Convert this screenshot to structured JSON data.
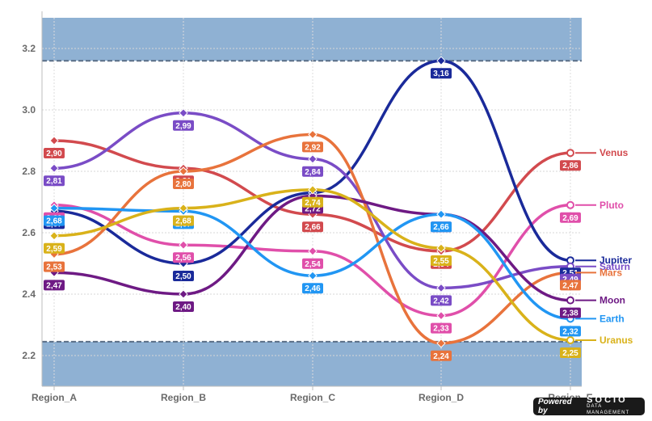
{
  "chart_data": {
    "type": "line",
    "categories": [
      "Region_A",
      "Region_B",
      "Region_C",
      "Region_D",
      "Region_E"
    ],
    "ylim": [
      2.1,
      3.3
    ],
    "yticks": [
      "2.2",
      "2.4",
      "2.6",
      "2.8",
      "3.0",
      "3.2"
    ],
    "grid": true,
    "bands": [
      {
        "from": 3.16,
        "to": 3.3,
        "color": "#8fb1d3"
      },
      {
        "from": 2.1,
        "to": 2.245,
        "color": "#8fb1d3"
      }
    ],
    "series": [
      {
        "name": "Venus",
        "color": "#d24a4e",
        "values": [
          2.9,
          2.81,
          2.66,
          2.54,
          2.86
        ],
        "labels": [
          "2,90",
          "2,81",
          "2,66",
          "2,54",
          "2,86"
        ]
      },
      {
        "name": "Pluto",
        "color": "#e04faa",
        "values": [
          2.69,
          2.56,
          2.54,
          2.33,
          2.69
        ],
        "labels": [
          "2,69",
          "2,56",
          "2,54",
          "2,33",
          "2,69"
        ]
      },
      {
        "name": "Jupiter",
        "color": "#1a2a9a",
        "values": [
          2.67,
          2.5,
          2.73,
          3.16,
          2.51
        ],
        "labels": [
          "2,67",
          "2,50",
          "2,73",
          "3,16",
          "2,51"
        ]
      },
      {
        "name": "Saturn",
        "color": "#7a4cc6",
        "values": [
          2.81,
          2.99,
          2.84,
          2.42,
          2.49
        ],
        "labels": [
          "2,81",
          "2,99",
          "2,84",
          "2,42",
          "2,49"
        ]
      },
      {
        "name": "Mars",
        "color": "#e8733c",
        "values": [
          2.53,
          2.8,
          2.92,
          2.24,
          2.47
        ],
        "labels": [
          "2,53",
          "2,80",
          "2,92",
          "2,24",
          "2,47"
        ]
      },
      {
        "name": "Moon",
        "color": "#6e1a84",
        "values": [
          2.47,
          2.4,
          2.72,
          2.66,
          2.38
        ],
        "labels": [
          "2,47",
          "2,40",
          "2,72",
          "2,66",
          "2,38"
        ]
      },
      {
        "name": "Earth",
        "color": "#2196f3",
        "values": [
          2.68,
          2.67,
          2.46,
          2.66,
          2.32
        ],
        "labels": [
          "2,68",
          "2,67",
          "2,46",
          "2,66",
          "2,32"
        ]
      },
      {
        "name": "Uranus",
        "color": "#d9b21a",
        "values": [
          2.59,
          2.68,
          2.74,
          2.55,
          2.25
        ],
        "labels": [
          "2,59",
          "2,68",
          "2,74",
          "2,55",
          "2,25"
        ]
      }
    ]
  },
  "badge": {
    "powered": "Powered by",
    "brand": "SOCIO",
    "tagline": "DATA MANAGEMENT"
  }
}
